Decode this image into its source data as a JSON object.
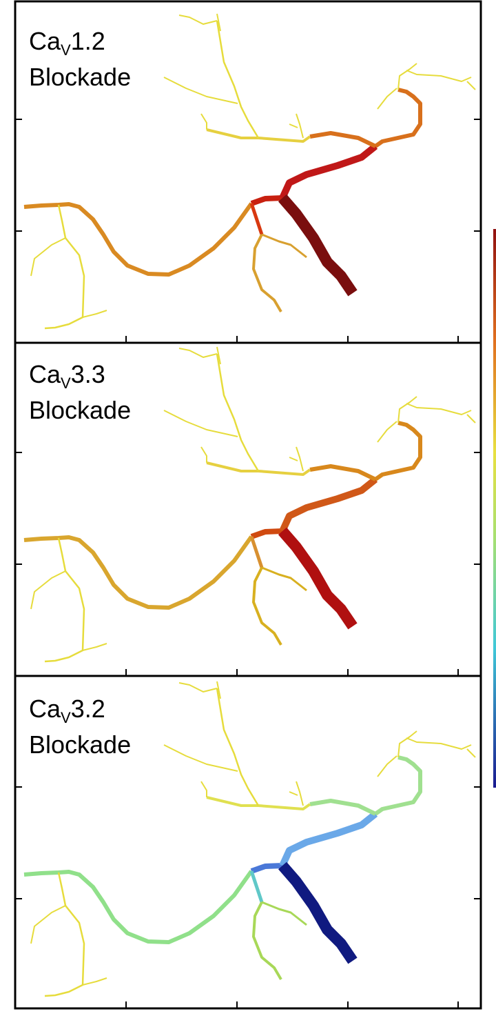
{
  "panels": [
    {
      "label": {
        "base": "Ca",
        "subscript": "V",
        "number": "1.2",
        "line2": "Blockade"
      }
    },
    {
      "label": {
        "base": "Ca",
        "subscript": "V",
        "number": "3.3",
        "line2": "Blockade"
      }
    },
    {
      "label": {
        "base": "Ca",
        "subscript": "V",
        "number": "3.2",
        "line2": "Blockade"
      }
    }
  ]
}
